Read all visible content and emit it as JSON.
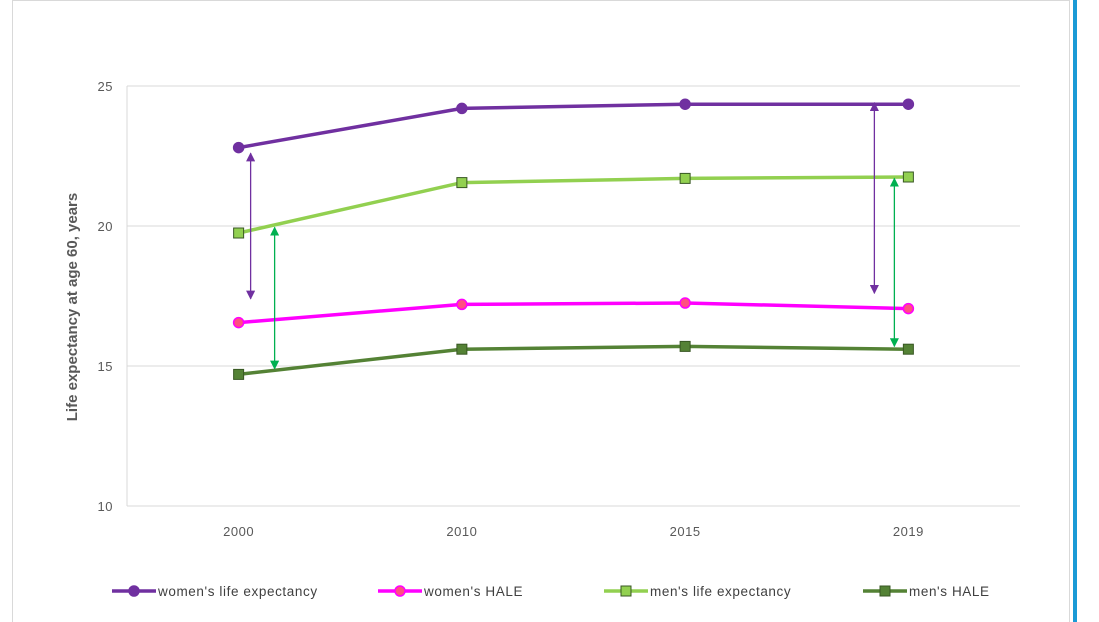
{
  "chart_data": {
    "type": "line",
    "title": "",
    "xlabel": "",
    "ylabel": "Life expectancy at age 60, years",
    "categories": [
      "2000",
      "2010",
      "2015",
      "2019"
    ],
    "ylim": [
      10,
      25
    ],
    "yticks": [
      10,
      15,
      20,
      25
    ],
    "grid": true,
    "legend_position": "bottom",
    "series": [
      {
        "name": "women's life expectancy",
        "values": [
          22.8,
          24.2,
          24.35,
          24.35
        ],
        "color": "#7030a0",
        "marker": "circle",
        "marker_fill": "#7030a0"
      },
      {
        "name": "women's HALE",
        "values": [
          16.55,
          17.2,
          17.25,
          17.05
        ],
        "color": "#ff00ff",
        "marker": "circle",
        "marker_fill": "#ff5080"
      },
      {
        "name": "men's life expectancy",
        "values": [
          19.75,
          21.55,
          21.7,
          21.75
        ],
        "color": "#92d050",
        "marker": "square",
        "marker_fill": "#92d050"
      },
      {
        "name": "men's HALE",
        "values": [
          14.7,
          15.6,
          15.7,
          15.6
        ],
        "color": "#548235",
        "marker": "square",
        "marker_fill": "#548235"
      }
    ],
    "annotations": [
      {
        "type": "double-arrow",
        "color": "#7030a0",
        "x": "2000",
        "from": 22.6,
        "to": 17.4
      },
      {
        "type": "double-arrow",
        "color": "#00b050",
        "x": "2000",
        "from": 19.95,
        "to": 14.9
      },
      {
        "type": "double-arrow",
        "color": "#7030a0",
        "x": "2019",
        "from": 24.4,
        "to": 17.6
      },
      {
        "type": "double-arrow",
        "color": "#00b050",
        "x": "2019",
        "from": 21.7,
        "to": 15.7
      }
    ]
  }
}
